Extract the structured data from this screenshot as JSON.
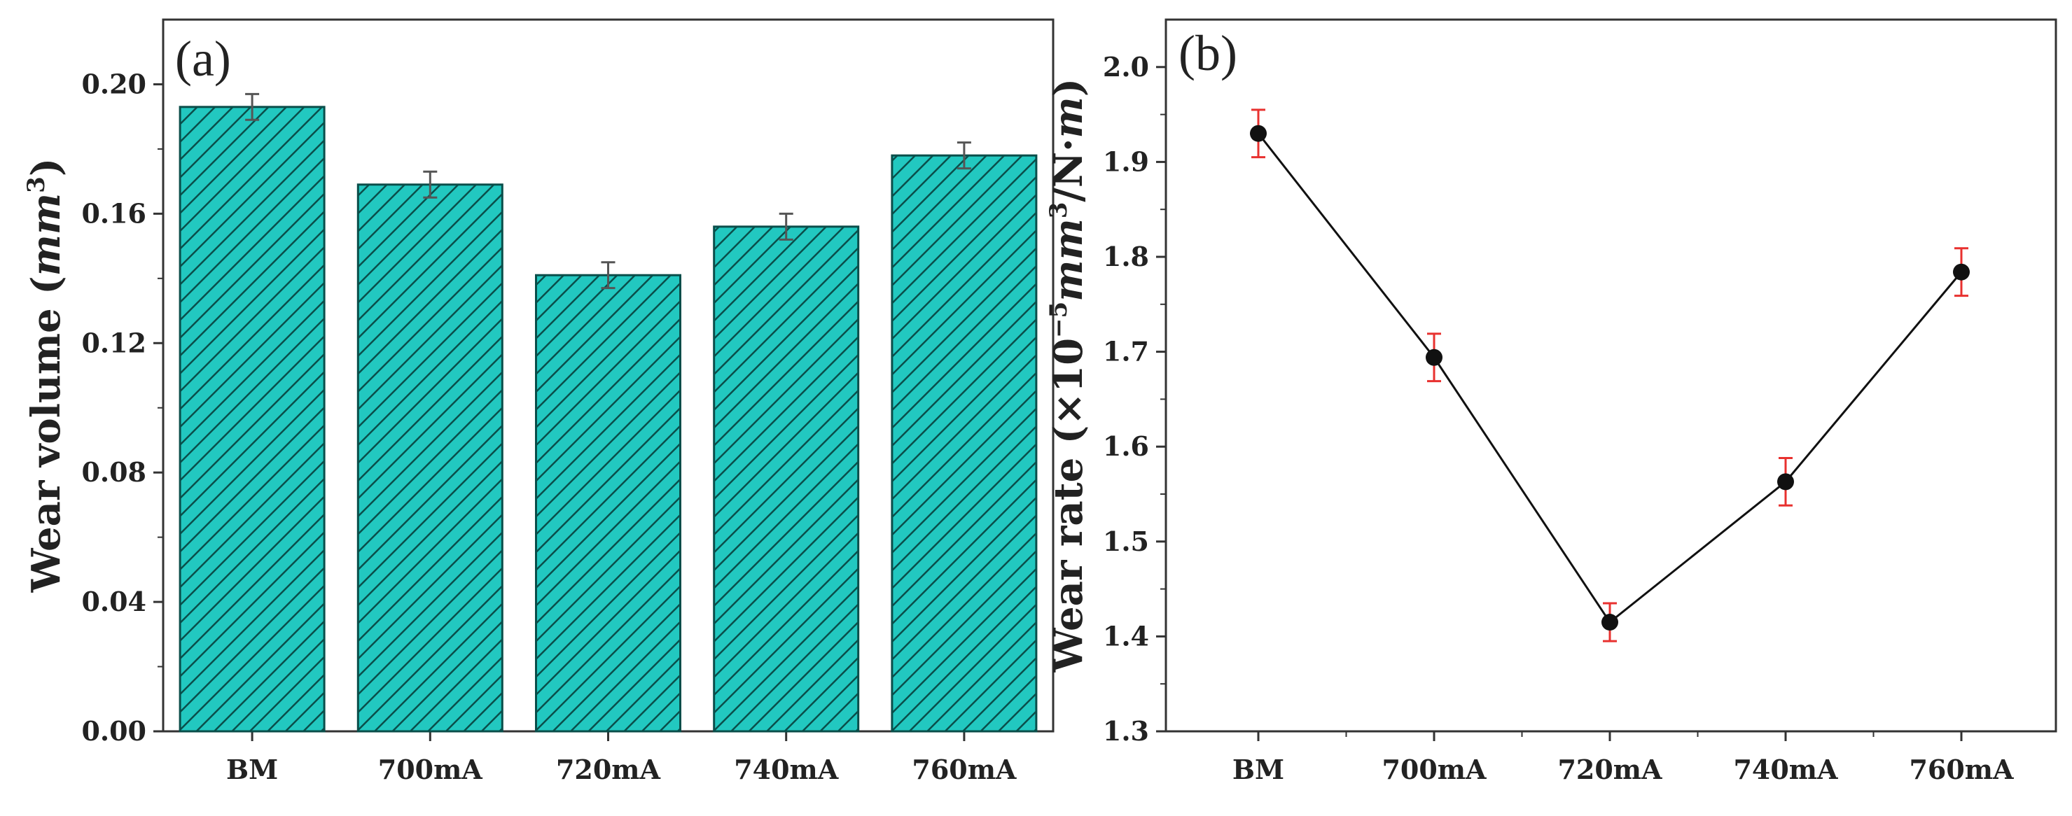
{
  "colors": {
    "bar_fill": "#22c8c0",
    "hatch": "#0a4e4a",
    "line": "#111111",
    "marker": "#111111",
    "line_error": "#e8312f",
    "bar_error": "#555555"
  },
  "chart_data": [
    {
      "type": "bar",
      "panel_label": "(a)",
      "categories": [
        "BM",
        "700mA",
        "720mA",
        "740mA",
        "760mA"
      ],
      "values": [
        0.193,
        0.169,
        0.141,
        0.156,
        0.178
      ],
      "errors": [
        0.004,
        0.004,
        0.004,
        0.004,
        0.004
      ],
      "ylabel": {
        "text": "Wear volume (",
        "math": "mm",
        "sup": "3",
        "close": ")"
      },
      "ylim": [
        0,
        0.22
      ],
      "yticks": [
        0.0,
        0.04,
        0.08,
        0.12,
        0.16,
        0.2
      ],
      "ytick_labels": [
        "0.00",
        "0.04",
        "0.08",
        "0.12",
        "0.16",
        "0.20"
      ],
      "xlabel": "",
      "pattern": "diagonal-hatch"
    },
    {
      "type": "line",
      "panel_label": "(b)",
      "categories": [
        "BM",
        "700mA",
        "720mA",
        "740mA",
        "760mA"
      ],
      "values": [
        1.93,
        1.694,
        1.415,
        1.563,
        1.784
      ],
      "errors": [
        0.025,
        0.025,
        0.02,
        0.025,
        0.025
      ],
      "ylabel": {
        "text": "Wear rate (×10",
        "exp": "−5",
        "math": "mm",
        "sup": "3",
        "tail": "/N·",
        "tail_math": "m",
        "close": ")"
      },
      "ylim": [
        1.3,
        2.05
      ],
      "yticks": [
        1.3,
        1.4,
        1.5,
        1.6,
        1.7,
        1.8,
        1.9,
        2.0
      ],
      "ytick_labels": [
        "1.3",
        "1.4",
        "1.5",
        "1.6",
        "1.7",
        "1.8",
        "1.9",
        "2.0"
      ],
      "xlabel": "",
      "marker": "filled-circle"
    }
  ]
}
